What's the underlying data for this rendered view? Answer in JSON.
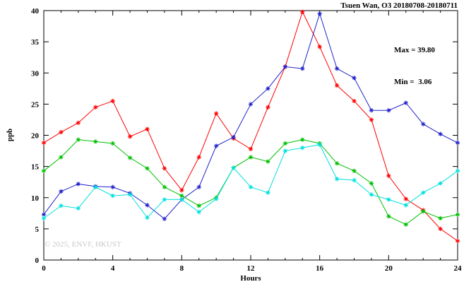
{
  "header": {
    "title": "Tsuen Wan, O3 20180708-20180711"
  },
  "annotation": {
    "max_label": "Max = 39.80",
    "min_label": "Min =  3.06"
  },
  "axes": {
    "ylabel": "ppb",
    "xlabel": "Hours"
  },
  "watermark": "© 2025, ENVF, HKUST",
  "chart_data": {
    "type": "line",
    "title": "Tsuen Wan, O3 20180708-20180711",
    "xlabel": "Hours",
    "ylabel": "ppb",
    "xlim": [
      0,
      24
    ],
    "ylim": [
      0,
      40
    ],
    "xtick_step": 4,
    "xminor_step": 1,
    "ytick_step": 5,
    "grid": false,
    "legend": "none",
    "marker": "asterisk",
    "annotations": [
      "Max = 39.80",
      "Min =  3.06"
    ],
    "x": [
      0,
      1,
      2,
      3,
      4,
      5,
      6,
      7,
      8,
      9,
      10,
      11,
      12,
      13,
      14,
      15,
      16,
      17,
      18,
      19,
      20,
      21,
      22,
      23,
      24
    ],
    "series": [
      {
        "name": "series-red",
        "color": "#ff0000",
        "values": [
          18.8,
          20.5,
          22.0,
          24.5,
          25.5,
          19.8,
          21.0,
          14.7,
          11.2,
          16.5,
          23.5,
          19.5,
          17.8,
          24.5,
          31.0,
          39.8,
          34.2,
          28.0,
          25.5,
          22.5,
          13.5,
          9.8,
          8.0,
          5.0,
          3.06
        ]
      },
      {
        "name": "series-blue",
        "color": "#2222cc",
        "values": [
          7.3,
          11.0,
          12.2,
          11.8,
          11.7,
          10.7,
          8.8,
          6.6,
          9.7,
          11.7,
          18.3,
          19.7,
          25.0,
          27.5,
          31.0,
          30.7,
          39.5,
          30.7,
          29.2,
          24.0,
          24.0,
          25.2,
          21.8,
          20.2,
          18.8
        ]
      },
      {
        "name": "series-green",
        "color": "#00c000",
        "values": [
          14.3,
          16.5,
          19.3,
          19.0,
          18.7,
          16.4,
          14.7,
          11.7,
          10.3,
          8.7,
          10.0,
          14.8,
          16.5,
          15.8,
          18.7,
          19.3,
          18.7,
          15.5,
          14.3,
          12.3,
          7.0,
          5.7,
          7.8,
          6.7,
          7.3
        ]
      },
      {
        "name": "series-cyan",
        "color": "#00e0e0",
        "values": [
          6.7,
          8.7,
          8.3,
          11.7,
          10.3,
          10.5,
          6.8,
          9.7,
          9.7,
          7.7,
          9.8,
          14.8,
          11.7,
          10.8,
          17.5,
          18.0,
          18.5,
          13.0,
          12.8,
          10.5,
          9.7,
          8.8,
          10.8,
          12.3,
          14.3
        ]
      }
    ]
  }
}
